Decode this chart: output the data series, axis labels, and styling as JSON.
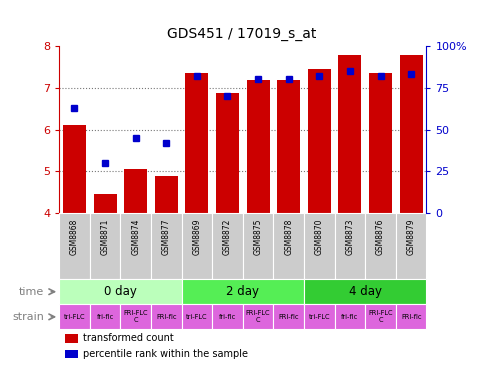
{
  "title": "GDS451 / 17019_s_at",
  "samples": [
    "GSM8868",
    "GSM8871",
    "GSM8874",
    "GSM8877",
    "GSM8869",
    "GSM8872",
    "GSM8875",
    "GSM8878",
    "GSM8870",
    "GSM8873",
    "GSM8876",
    "GSM8879"
  ],
  "transformed_count": [
    6.1,
    4.45,
    5.05,
    4.9,
    7.35,
    6.88,
    7.18,
    7.18,
    7.45,
    7.78,
    7.35,
    7.78
  ],
  "percentile_rank": [
    63,
    30,
    45,
    42,
    82,
    70,
    80,
    80,
    82,
    85,
    82,
    83
  ],
  "ylim": [
    4,
    8
  ],
  "yticks": [
    4,
    5,
    6,
    7,
    8
  ],
  "y2ticks": [
    0,
    25,
    50,
    75,
    100
  ],
  "y2labels": [
    "0",
    "25",
    "50",
    "75",
    "100%"
  ],
  "bar_color": "#cc0000",
  "dot_color": "#0000cc",
  "time_groups": [
    {
      "label": "0 day",
      "start": 0,
      "end": 4,
      "color": "#bbffbb"
    },
    {
      "label": "2 day",
      "start": 4,
      "end": 8,
      "color": "#55ee55"
    },
    {
      "label": "4 day",
      "start": 8,
      "end": 12,
      "color": "#33cc33"
    }
  ],
  "strain_labels": [
    "tri-FLC",
    "fri-flc",
    "FRI-FLC\nC",
    "FRI-flc",
    "tri-FLC",
    "fri-flc",
    "FRI-FLC\nC",
    "FRI-flc",
    "tri-FLC",
    "fri-flc",
    "FRI-FLC\nC",
    "FRI-flc"
  ],
  "strain_color": "#dd66dd",
  "sample_bg_color": "#cccccc",
  "grid_color": "#777777",
  "legend_red_label": "transformed count",
  "legend_blue_label": "percentile rank within the sample"
}
